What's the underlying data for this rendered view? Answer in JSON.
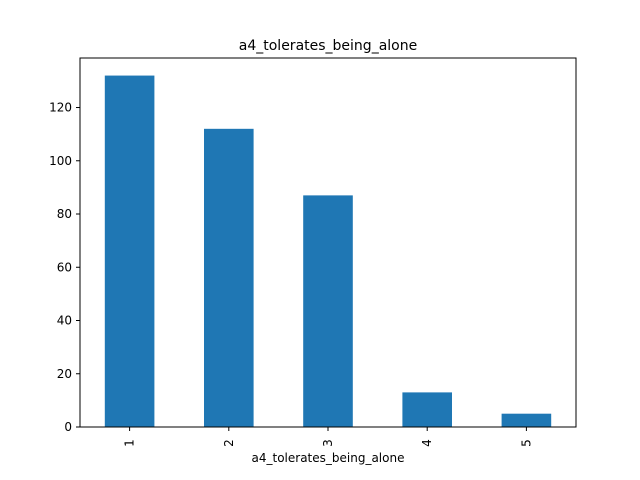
{
  "chart_data": {
    "type": "bar",
    "title": "a4_tolerates_being_alone",
    "xlabel": "a4_tolerates_being_alone",
    "ylabel": "",
    "categories": [
      "1",
      "2",
      "3",
      "4",
      "5"
    ],
    "values": [
      132,
      112,
      87,
      13,
      5
    ],
    "ylim": [
      0,
      138.6
    ],
    "yticks": [
      0,
      20,
      40,
      60,
      80,
      100,
      120
    ],
    "bar_color": "#1f77b4",
    "grid": false,
    "legend": "none",
    "xtick_rotation": "vertical"
  }
}
